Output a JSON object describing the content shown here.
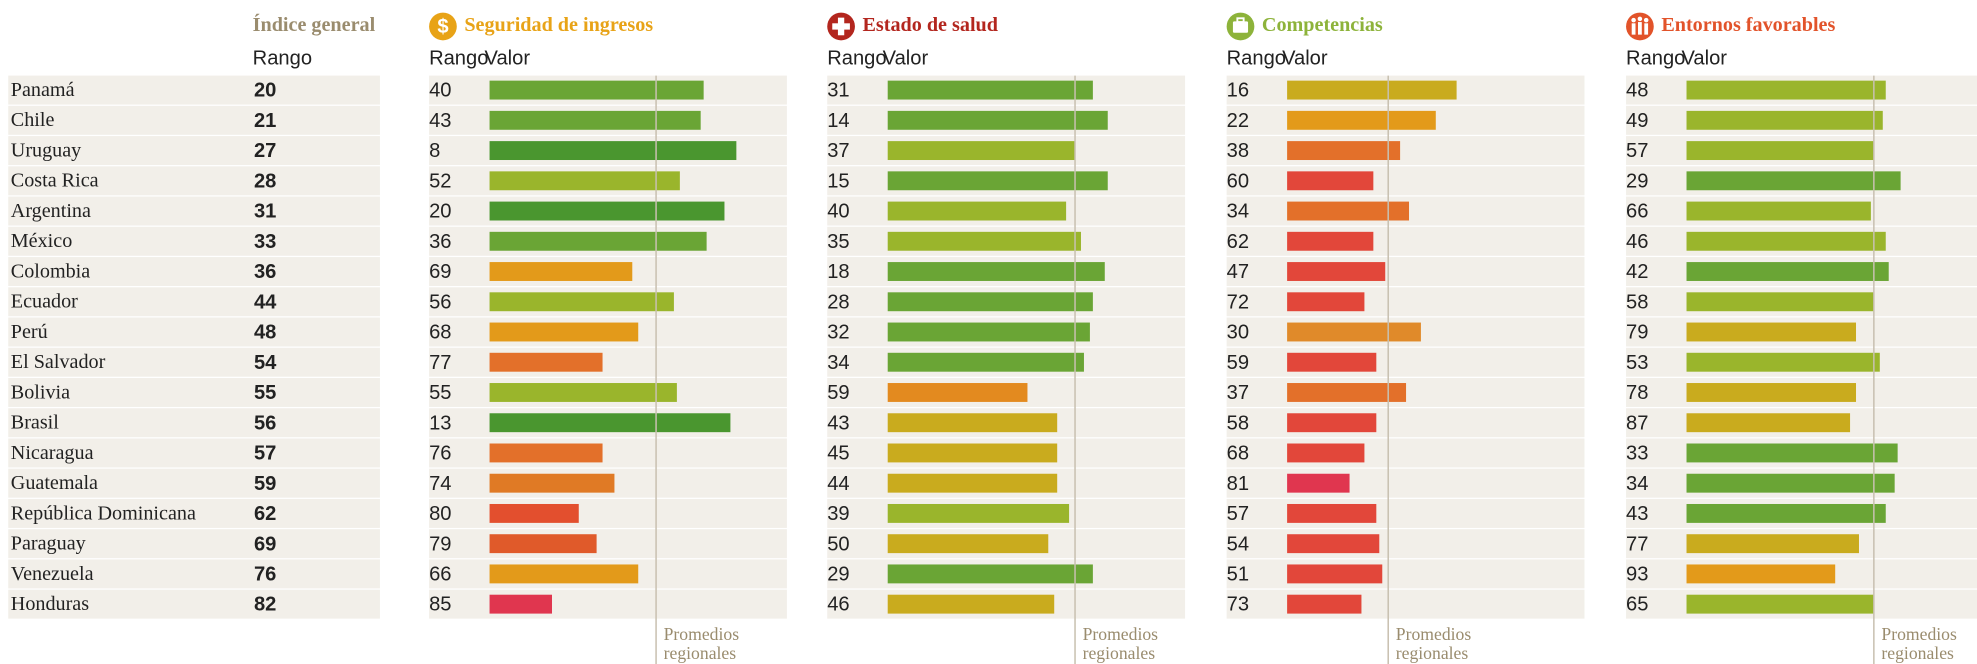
{
  "chart_data": {
    "type": "bar",
    "xlim": [
      0,
      100
    ],
    "index": {
      "title": "Índice general",
      "rank_label": "Rango",
      "ranks": [
        20,
        21,
        27,
        28,
        31,
        33,
        36,
        44,
        48,
        54,
        55,
        56,
        57,
        59,
        62,
        69,
        76,
        82
      ]
    },
    "categories": [
      "Panamá",
      "Chile",
      "Uruguay",
      "Costa Rica",
      "Argentina",
      "México",
      "Colombia",
      "Ecuador",
      "Perú",
      "El Salvador",
      "Bolivia",
      "Brasil",
      "Nicaragua",
      "Guatemala",
      "República Dominicana",
      "Paraguay",
      "Venezuela",
      "Honduras"
    ],
    "sections": [
      {
        "title": "Seguridad de ingresos",
        "color": "#e8a317",
        "rank_label": "Rango",
        "value_label": "Valor",
        "average_label": "Promedios regionales",
        "regional_average": 56,
        "ranks": [
          40,
          43,
          8,
          52,
          20,
          36,
          69,
          56,
          68,
          77,
          55,
          13,
          76,
          74,
          80,
          79,
          66,
          85
        ],
        "values": [
          72,
          71,
          83,
          64,
          79,
          73,
          48,
          62,
          50,
          38,
          63,
          81,
          38,
          42,
          30,
          36,
          50,
          21
        ],
        "colors": [
          "#6aa535",
          "#6aa535",
          "#4a962f",
          "#9ab52c",
          "#4a962f",
          "#6aa535",
          "#e39a1a",
          "#9ab52c",
          "#e39a1a",
          "#e3702a",
          "#9ab52c",
          "#4a962f",
          "#e3702a",
          "#e07a25",
          "#e34f2e",
          "#e05a2a",
          "#e39a1a",
          "#e0364f"
        ]
      },
      {
        "title": "Estado de salud",
        "color": "#b3261e",
        "rank_label": "Rango",
        "value_label": "Valor",
        "average_label": "Promedios regionales",
        "regional_average": 63,
        "ranks": [
          31,
          14,
          37,
          15,
          40,
          35,
          18,
          28,
          32,
          34,
          59,
          43,
          45,
          44,
          39,
          50,
          29,
          46
        ],
        "values": [
          69,
          74,
          63,
          74,
          60,
          65,
          73,
          69,
          68,
          66,
          47,
          57,
          57,
          57,
          61,
          54,
          69,
          56
        ],
        "colors": [
          "#6aa535",
          "#6aa535",
          "#9ab52c",
          "#6aa535",
          "#9ab52c",
          "#9ab52c",
          "#6aa535",
          "#6aa535",
          "#6aa535",
          "#6aa535",
          "#e38a1f",
          "#c9ab1e",
          "#c9ab1e",
          "#c9ab1e",
          "#9ab52c",
          "#c9ab1e",
          "#6aa535",
          "#c9ab1e"
        ]
      },
      {
        "title": "Competencias",
        "color": "#8db33a",
        "rank_label": "Rango",
        "value_label": "Valor",
        "average_label": "Promedios regionales",
        "regional_average": 34,
        "ranks": [
          16,
          22,
          38,
          60,
          34,
          62,
          47,
          72,
          30,
          59,
          37,
          58,
          68,
          81,
          57,
          54,
          51,
          73
        ],
        "values": [
          57,
          50,
          38,
          29,
          41,
          29,
          33,
          26,
          45,
          30,
          40,
          30,
          26,
          21,
          30,
          31,
          32,
          25
        ],
        "colors": [
          "#c9ab1e",
          "#e39a1a",
          "#e3702a",
          "#e2473a",
          "#e3702a",
          "#e2473a",
          "#e2473a",
          "#e2473a",
          "#e08a2a",
          "#e2473a",
          "#e3702a",
          "#e2473a",
          "#e2473a",
          "#e0364f",
          "#e2473a",
          "#e2473a",
          "#e2473a",
          "#e2473a"
        ]
      },
      {
        "title": "Entornos favorables",
        "color": "#e2532a",
        "rank_label": "Rango",
        "value_label": "Valor",
        "average_label": "Promedios regionales",
        "regional_average": 63,
        "ranks": [
          48,
          49,
          57,
          29,
          66,
          46,
          42,
          58,
          79,
          53,
          78,
          87,
          33,
          34,
          43,
          77,
          93,
          65
        ],
        "values": [
          67,
          66,
          63,
          72,
          62,
          67,
          68,
          63,
          57,
          65,
          57,
          55,
          71,
          70,
          67,
          58,
          50,
          63
        ],
        "colors": [
          "#9ab52c",
          "#9ab52c",
          "#9ab52c",
          "#6aa535",
          "#9ab52c",
          "#9ab52c",
          "#6aa535",
          "#9ab52c",
          "#c9ab1e",
          "#9ab52c",
          "#c9ab1e",
          "#c9ab1e",
          "#6aa535",
          "#6aa535",
          "#6aa535",
          "#c9ab1e",
          "#e39a1a",
          "#9ab52c"
        ]
      }
    ]
  }
}
